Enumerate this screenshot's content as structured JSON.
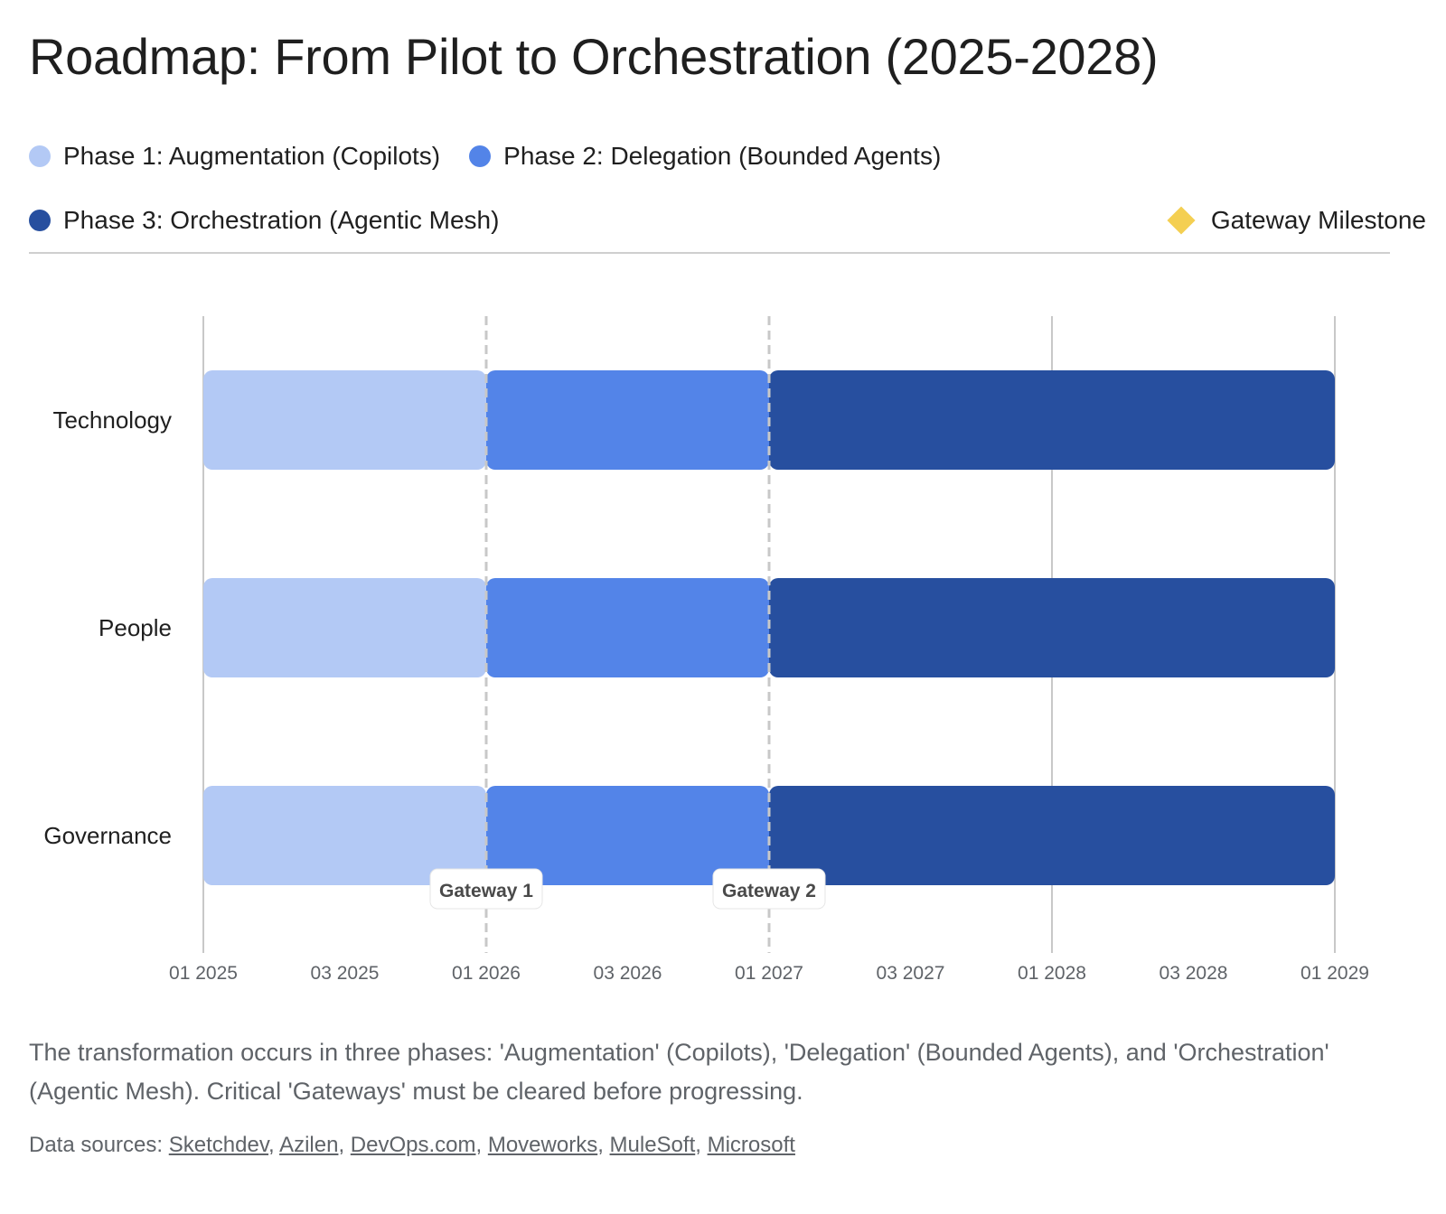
{
  "title": "Roadmap: From Pilot to Orchestration (2025-2028)",
  "legend": {
    "phase1": {
      "label": "Phase 1: Augmentation (Copilots)",
      "color": "#b3c9f5"
    },
    "phase2": {
      "label": "Phase 2: Delegation (Bounded Agents)",
      "color": "#5384e8"
    },
    "phase3": {
      "label": "Phase 3: Orchestration (Agentic Mesh)",
      "color": "#274f9f"
    },
    "milestone": {
      "label": "Gateway Milestone",
      "color": "#f4cf52"
    }
  },
  "chart_data": {
    "type": "bar",
    "orientation": "horizontal-gantt",
    "categories": [
      "Technology",
      "People",
      "Governance"
    ],
    "x_range": [
      "2025-01",
      "2029-01"
    ],
    "x_ticks": [
      "01 2025",
      "03 2025",
      "01 2026",
      "03 2026",
      "01 2027",
      "03 2027",
      "01 2028",
      "03 2028",
      "01 2029"
    ],
    "x_tick_values": [
      "2025-01",
      "2025-07",
      "2026-01",
      "2026-07",
      "2027-01",
      "2027-07",
      "2028-01",
      "2028-07",
      "2029-01"
    ],
    "series": [
      {
        "name": "Phase 1: Augmentation (Copilots)",
        "color": "#b3c9f5",
        "values": [
          [
            "2025-01",
            "2026-01"
          ],
          [
            "2025-01",
            "2026-01"
          ],
          [
            "2025-01",
            "2026-01"
          ]
        ]
      },
      {
        "name": "Phase 2: Delegation (Bounded Agents)",
        "color": "#5384e8",
        "values": [
          [
            "2026-01",
            "2027-01"
          ],
          [
            "2026-01",
            "2027-01"
          ],
          [
            "2026-01",
            "2027-01"
          ]
        ]
      },
      {
        "name": "Phase 3: Orchestration (Agentic Mesh)",
        "color": "#274f9f",
        "values": [
          [
            "2027-01",
            "2029-01"
          ],
          [
            "2027-01",
            "2029-01"
          ],
          [
            "2027-01",
            "2029-01"
          ]
        ]
      }
    ],
    "milestones": [
      {
        "label": "Gateway 1",
        "date": "2026-01"
      },
      {
        "label": "Gateway 2",
        "date": "2027-01"
      }
    ],
    "grid": true,
    "legend_position": "top"
  },
  "caption": "The transformation occurs in three phases: 'Augmentation' (Copilots), 'Delegation' (Bounded Agents), and 'Orchestration' (Agentic Mesh). Critical 'Gateways' must be cleared before progressing.",
  "sources": {
    "prefix": "Data sources:",
    "links": [
      "Sketchdev",
      "Azilen",
      "DevOps.com",
      "Moveworks",
      "MuleSoft",
      "Microsoft"
    ]
  }
}
